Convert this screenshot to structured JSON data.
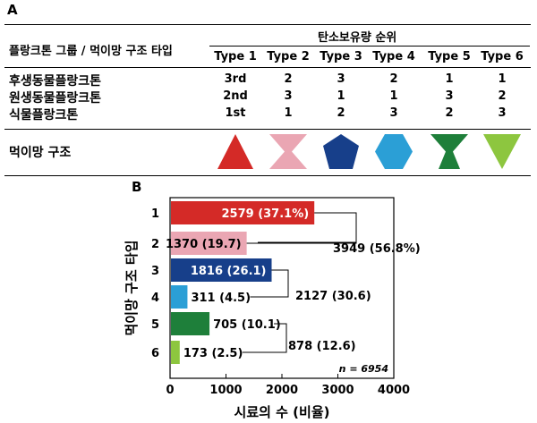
{
  "panel_a_label": "A",
  "panel_b_label": "B",
  "table": {
    "row_header": "플랑크톤 그룹 / 먹이망 구조 타입",
    "col_super_header": "탄소보유량 순위",
    "types": [
      "Type 1",
      "Type 2",
      "Type 3",
      "Type 4",
      "Type 5",
      "Type 6"
    ],
    "groups": [
      {
        "name": "후생동물플랑크톤",
        "ranks": [
          "3rd",
          "2",
          "3",
          "2",
          "1",
          "1"
        ]
      },
      {
        "name": "원생동물플랑크톤",
        "ranks": [
          "2nd",
          "3",
          "1",
          "1",
          "3",
          "2"
        ]
      },
      {
        "name": "식물플랑크톤",
        "ranks": [
          "1st",
          "1",
          "2",
          "3",
          "2",
          "3"
        ]
      }
    ],
    "foodweb_label": "먹이망 구조",
    "shapes": [
      {
        "icon": "triangle-icon",
        "color": "#d42a27"
      },
      {
        "icon": "hourglass-icon",
        "color": "#eaa6b3"
      },
      {
        "icon": "pentagon-icon",
        "color": "#173f8a"
      },
      {
        "icon": "hexagon-icon",
        "color": "#2b9fd6"
      },
      {
        "icon": "goblet-icon",
        "color": "#1e7f3a"
      },
      {
        "icon": "inverted-triangle-icon",
        "color": "#8dc63f"
      }
    ]
  },
  "chart_data": {
    "type": "bar",
    "orientation": "horizontal",
    "categories": [
      "1",
      "2",
      "3",
      "4",
      "5",
      "6"
    ],
    "values": [
      2579,
      1370,
      1816,
      311,
      705,
      173
    ],
    "bar_labels": [
      "2579 (37.1%)",
      "1370 (19.7)",
      "1816 (26.1)",
      "311 (4.5)",
      "705 (10.1)",
      "173 (2.5)"
    ],
    "colors": [
      "#d42a27",
      "#eaa6b3",
      "#173f8a",
      "#2b9fd6",
      "#1e7f3a",
      "#8dc63f"
    ],
    "pair_totals": [
      {
        "rows": [
          1,
          2
        ],
        "label": "3949 (56.8%)"
      },
      {
        "rows": [
          3,
          4
        ],
        "label": "2127 (30.6)"
      },
      {
        "rows": [
          5,
          6
        ],
        "label": "878 (12.6)"
      }
    ],
    "xlabel": "시료의 수 (비율)",
    "ylabel": "먹이망 구조 타입",
    "xlim": [
      0,
      4000
    ],
    "xticks": [
      0,
      1000,
      2000,
      3000,
      4000
    ],
    "annotation": "n = 6954",
    "grid": false
  }
}
